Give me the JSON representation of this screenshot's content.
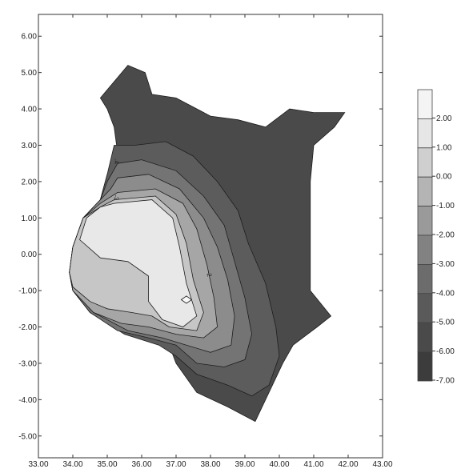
{
  "chart_data": {
    "type": "contour-map",
    "title": "",
    "xlabel": "",
    "ylabel": "",
    "x_ticks": [
      "33.00",
      "34.00",
      "35.00",
      "36.00",
      "37.00",
      "38.00",
      "39.00",
      "40.00",
      "41.00",
      "42.00",
      "43.00"
    ],
    "y_ticks": [
      "6.00",
      "5.00",
      "4.00",
      "3.00",
      "2.00",
      "1.00",
      "0.00",
      "-1.00",
      "-2.00",
      "-3.00",
      "-4.00",
      "-5.00"
    ],
    "xlim": [
      33,
      43
    ],
    "ylim": [
      -5.6,
      6.6
    ],
    "legend": {
      "placement": "right",
      "levels": [
        "2.00",
        "1.00",
        "0.00",
        "-1.00",
        "-2.00",
        "-3.00",
        "-4.00",
        "-5.00",
        "-6.00",
        "-7.00"
      ],
      "colors": [
        "#f4f4f4",
        "#e6e6e6",
        "#cfcfcf",
        "#b4b4b4",
        "#9a9a9a",
        "#828282",
        "#6c6c6c",
        "#5a5a5a",
        "#4a4a4a",
        "#3c3c3c"
      ]
    },
    "contour_labels": [
      {
        "text": "-4",
        "x": 35.2,
        "y": 2.55,
        "rotate": 75
      },
      {
        "text": "-2",
        "x": 35.2,
        "y": 1.55,
        "rotate": 80
      },
      {
        "text": "-2",
        "x": 37.9,
        "y": -0.55,
        "rotate": 80
      }
    ],
    "regions": [
      {
        "fill": "#4a4a4a",
        "points": [
          [
            34.8,
            4.3
          ],
          [
            35.6,
            5.2
          ],
          [
            36.1,
            5.0
          ],
          [
            36.3,
            4.4
          ],
          [
            37.0,
            4.3
          ],
          [
            38.0,
            3.8
          ],
          [
            38.8,
            3.7
          ],
          [
            39.6,
            3.5
          ],
          [
            40.3,
            4.0
          ],
          [
            41.0,
            3.9
          ],
          [
            41.9,
            3.9
          ],
          [
            41.6,
            3.5
          ],
          [
            41.0,
            3.0
          ],
          [
            40.9,
            2.0
          ],
          [
            40.9,
            -1.0
          ],
          [
            41.5,
            -1.7
          ],
          [
            41.1,
            -2.0
          ],
          [
            40.4,
            -2.5
          ],
          [
            40.1,
            -3.0
          ],
          [
            39.7,
            -3.8
          ],
          [
            39.3,
            -4.6
          ],
          [
            38.5,
            -4.2
          ],
          [
            37.6,
            -3.8
          ],
          [
            37.0,
            -3.0
          ],
          [
            36.8,
            -2.5
          ],
          [
            36.0,
            -2.3
          ],
          [
            35.2,
            -2.0
          ],
          [
            34.5,
            -1.6
          ],
          [
            34.0,
            -1.0
          ],
          [
            33.9,
            -0.5
          ],
          [
            34.0,
            0.2
          ],
          [
            34.3,
            1.0
          ],
          [
            34.8,
            1.5
          ],
          [
            35.0,
            2.2
          ],
          [
            35.3,
            2.8
          ],
          [
            35.2,
            3.5
          ],
          [
            35.0,
            4.0
          ]
        ]
      },
      {
        "fill": "#5c5c5c",
        "points": [
          [
            35.2,
            3.0
          ],
          [
            35.8,
            3.0
          ],
          [
            36.7,
            3.1
          ],
          [
            37.5,
            2.7
          ],
          [
            38.2,
            2.0
          ],
          [
            38.8,
            1.2
          ],
          [
            39.1,
            0.3
          ],
          [
            39.6,
            -0.8
          ],
          [
            39.9,
            -2.0
          ],
          [
            40.0,
            -2.8
          ],
          [
            39.7,
            -3.6
          ],
          [
            39.2,
            -3.9
          ],
          [
            38.5,
            -3.6
          ],
          [
            37.6,
            -3.3
          ],
          [
            37.0,
            -2.8
          ],
          [
            36.5,
            -2.5
          ],
          [
            35.5,
            -2.2
          ],
          [
            34.5,
            -1.6
          ],
          [
            34.0,
            -1.0
          ],
          [
            33.9,
            -0.5
          ],
          [
            34.0,
            0.2
          ],
          [
            34.3,
            1.0
          ],
          [
            34.8,
            1.5
          ],
          [
            35.0,
            2.2
          ]
        ]
      },
      {
        "fill": "#747474",
        "points": [
          [
            35.3,
            2.5
          ],
          [
            36.0,
            2.6
          ],
          [
            37.0,
            2.3
          ],
          [
            37.8,
            1.6
          ],
          [
            38.4,
            0.8
          ],
          [
            38.7,
            -0.2
          ],
          [
            39.0,
            -1.2
          ],
          [
            39.2,
            -2.2
          ],
          [
            39.0,
            -2.9
          ],
          [
            38.4,
            -3.1
          ],
          [
            37.6,
            -3.0
          ],
          [
            37.0,
            -2.5
          ],
          [
            36.2,
            -2.3
          ],
          [
            35.3,
            -2.1
          ],
          [
            34.5,
            -1.6
          ],
          [
            34.0,
            -1.0
          ],
          [
            33.9,
            -0.5
          ],
          [
            34.0,
            0.2
          ],
          [
            34.3,
            1.0
          ],
          [
            34.8,
            1.5
          ],
          [
            35.0,
            2.0
          ]
        ]
      },
      {
        "fill": "#8c8c8c",
        "points": [
          [
            35.3,
            2.1
          ],
          [
            36.2,
            2.2
          ],
          [
            37.1,
            1.8
          ],
          [
            37.8,
            1.0
          ],
          [
            38.2,
            0.2
          ],
          [
            38.5,
            -0.7
          ],
          [
            38.7,
            -1.7
          ],
          [
            38.6,
            -2.5
          ],
          [
            38.0,
            -2.7
          ],
          [
            37.3,
            -2.5
          ],
          [
            36.6,
            -2.3
          ],
          [
            35.6,
            -2.1
          ],
          [
            34.6,
            -1.6
          ],
          [
            34.0,
            -1.0
          ],
          [
            33.9,
            -0.5
          ],
          [
            34.0,
            0.2
          ],
          [
            34.3,
            1.0
          ],
          [
            34.8,
            1.5
          ],
          [
            35.1,
            1.8
          ]
        ]
      },
      {
        "fill": "#a6a6a6",
        "points": [
          [
            35.3,
            1.7
          ],
          [
            36.4,
            1.8
          ],
          [
            37.2,
            1.4
          ],
          [
            37.6,
            0.7
          ],
          [
            37.9,
            -0.3
          ],
          [
            38.1,
            -1.2
          ],
          [
            38.2,
            -2.0
          ],
          [
            37.8,
            -2.3
          ],
          [
            37.0,
            -2.2
          ],
          [
            36.2,
            -2.0
          ],
          [
            35.4,
            -1.9
          ],
          [
            34.6,
            -1.6
          ],
          [
            34.0,
            -1.0
          ],
          [
            33.9,
            -0.5
          ],
          [
            34.0,
            0.2
          ],
          [
            34.3,
            1.0
          ],
          [
            34.8,
            1.4
          ]
        ]
      },
      {
        "fill": "#c6c6c6",
        "points": [
          [
            35.2,
            1.5
          ],
          [
            36.4,
            1.6
          ],
          [
            37.0,
            1.1
          ],
          [
            37.3,
            0.3
          ],
          [
            37.5,
            -0.7
          ],
          [
            37.8,
            -1.6
          ],
          [
            37.6,
            -2.1
          ],
          [
            36.8,
            -2.0
          ],
          [
            36.3,
            -1.7
          ],
          [
            35.7,
            -1.6
          ],
          [
            35.0,
            -1.5
          ],
          [
            34.5,
            -1.3
          ],
          [
            34.0,
            -0.9
          ],
          [
            33.9,
            -0.5
          ],
          [
            34.0,
            0.2
          ],
          [
            34.3,
            1.0
          ],
          [
            34.8,
            1.3
          ]
        ]
      },
      {
        "fill": "#e8e8e8",
        "points": [
          [
            35.2,
            1.4
          ],
          [
            36.3,
            1.5
          ],
          [
            36.9,
            1.0
          ],
          [
            37.1,
            0.2
          ],
          [
            37.3,
            -0.8
          ],
          [
            37.6,
            -1.7
          ],
          [
            37.2,
            -2.0
          ],
          [
            36.6,
            -1.8
          ],
          [
            36.2,
            -1.3
          ],
          [
            36.2,
            -0.6
          ],
          [
            35.6,
            -0.2
          ],
          [
            34.8,
            -0.1
          ],
          [
            34.2,
            0.4
          ],
          [
            34.4,
            1.0
          ],
          [
            34.8,
            1.3
          ]
        ]
      },
      {
        "fill": "#f8f8f8",
        "points": [
          [
            37.15,
            -1.25
          ],
          [
            37.3,
            -1.15
          ],
          [
            37.45,
            -1.25
          ],
          [
            37.3,
            -1.35
          ]
        ]
      }
    ]
  }
}
